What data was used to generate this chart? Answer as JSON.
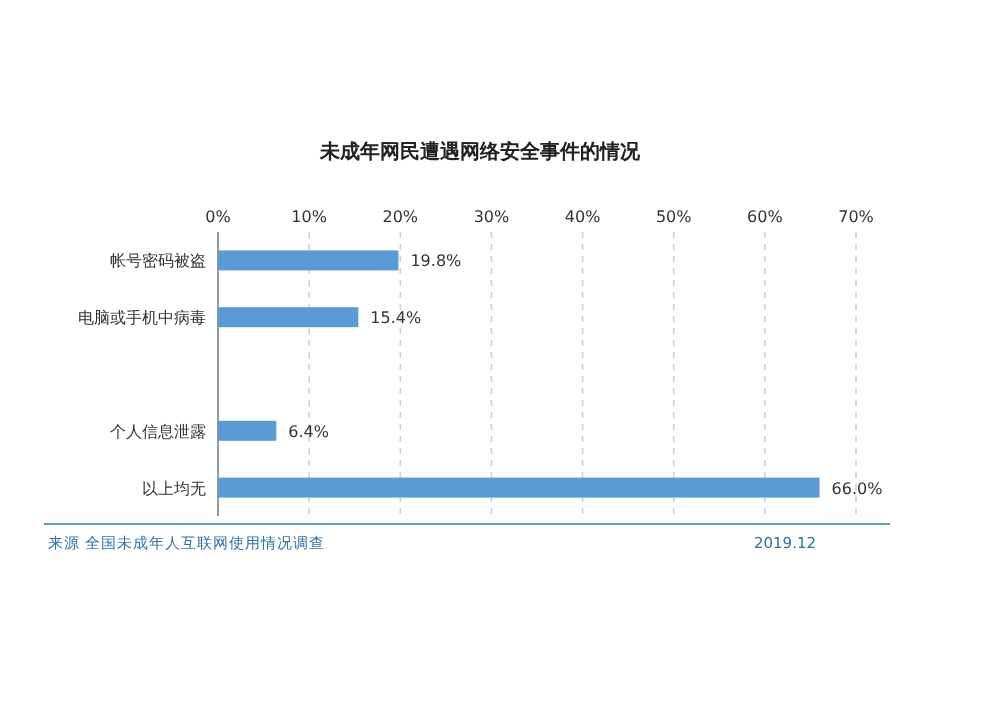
{
  "chart_data": {
    "type": "bar",
    "orientation": "horizontal",
    "title": "未成年网民遭遇网络安全事件的情况",
    "categories": [
      "帐号密码被盗",
      "电脑或手机中病毒",
      null,
      "个人信息泄露",
      "以上均无"
    ],
    "values": [
      19.8,
      15.4,
      null,
      6.4,
      66.0
    ],
    "value_labels": [
      "19.8%",
      "15.4%",
      null,
      "6.4%",
      "66.0%"
    ],
    "color": "#5b9bd5",
    "xlim": [
      0,
      70
    ],
    "xticks": [
      {
        "value": 0,
        "label": "0%"
      },
      {
        "value": 10,
        "label": "10%"
      },
      {
        "value": 20,
        "label": "20%"
      },
      {
        "value": 30,
        "label": "30%"
      },
      {
        "value": 40,
        "label": "40%"
      },
      {
        "value": 50,
        "label": "50%"
      },
      {
        "value": 60,
        "label": "60%"
      },
      {
        "value": 70,
        "label": "70%"
      }
    ],
    "grid": "x",
    "annotations": [
      "来源 全国未成年人互联网使用情况调查",
      "2019.12"
    ]
  }
}
